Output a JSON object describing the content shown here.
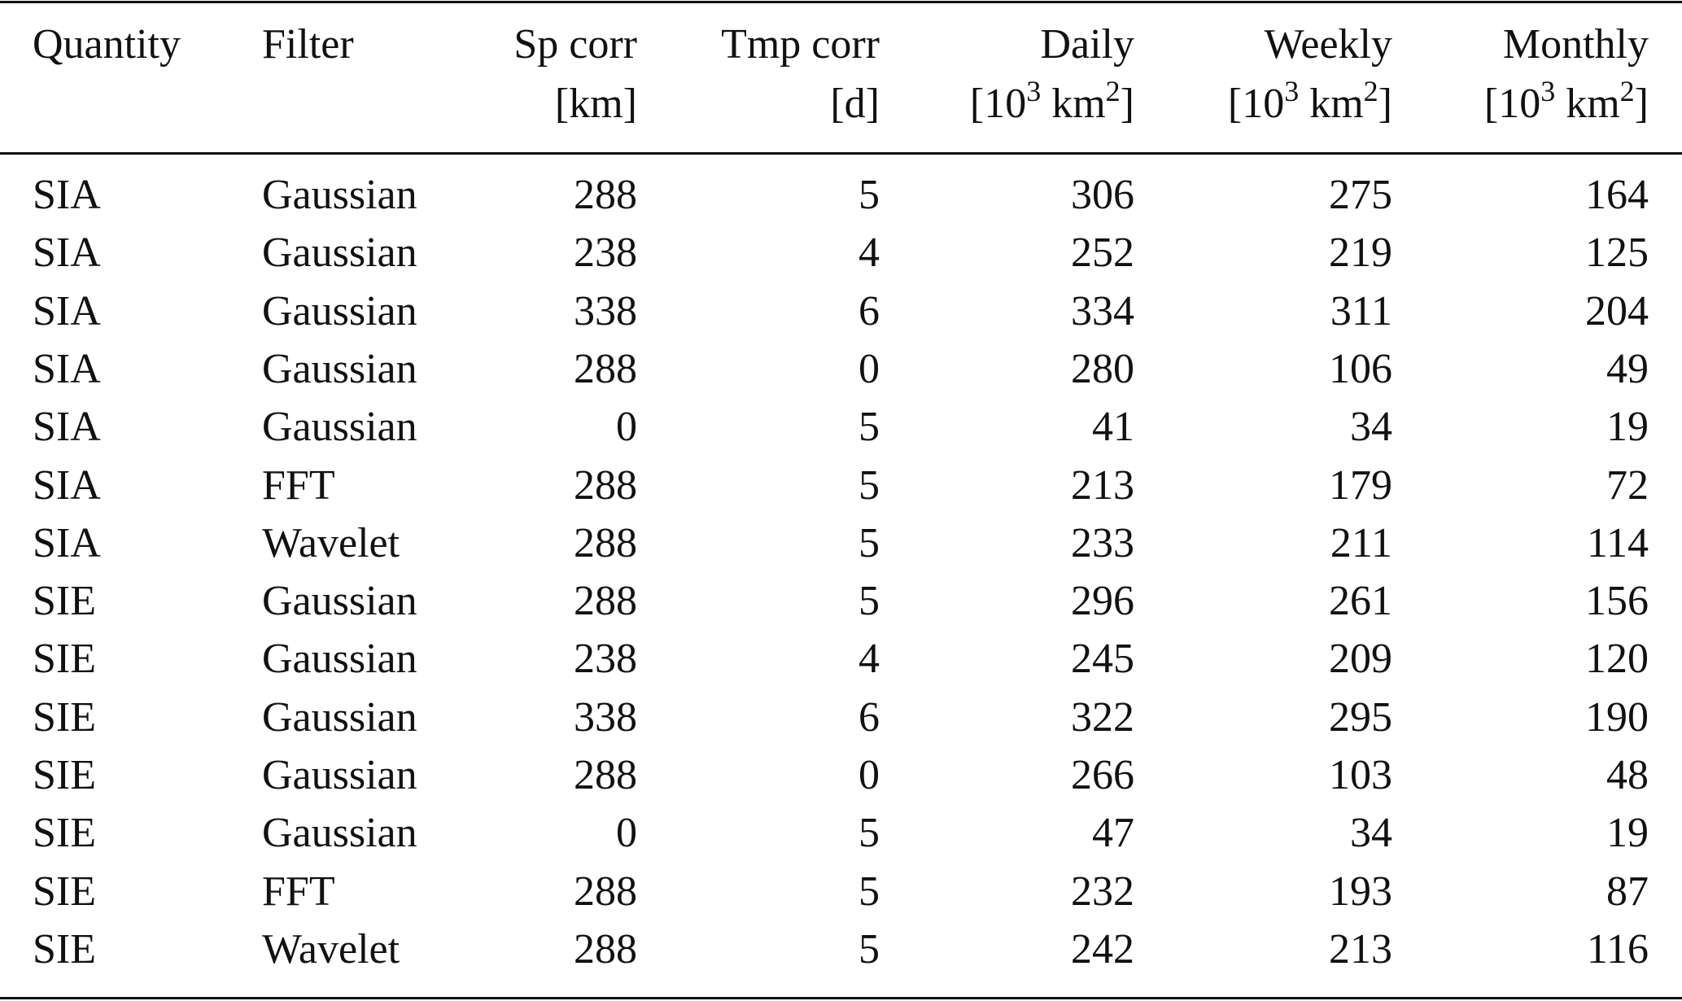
{
  "table": {
    "columns": [
      {
        "title": "Quantity"
      },
      {
        "title": "Filter"
      },
      {
        "title": "Sp corr",
        "unit": [
          "[km]"
        ]
      },
      {
        "title": "Tmp corr",
        "unit": [
          "[d]"
        ]
      },
      {
        "title": "Daily",
        "unit": [
          "[10",
          "3",
          " km",
          "2",
          "]"
        ]
      },
      {
        "title": "Weekly",
        "unit": [
          "[10",
          "3",
          " km",
          "2",
          "]"
        ]
      },
      {
        "title": "Monthly",
        "unit": [
          "[10",
          "3",
          " km",
          "2",
          "]"
        ]
      }
    ],
    "rows": [
      [
        "SIA",
        "Gaussian",
        288,
        5,
        306,
        275,
        164
      ],
      [
        "SIA",
        "Gaussian",
        238,
        4,
        252,
        219,
        125
      ],
      [
        "SIA",
        "Gaussian",
        338,
        6,
        334,
        311,
        204
      ],
      [
        "SIA",
        "Gaussian",
        288,
        0,
        280,
        106,
        49
      ],
      [
        "SIA",
        "Gaussian",
        0,
        5,
        41,
        34,
        19
      ],
      [
        "SIA",
        "FFT",
        288,
        5,
        213,
        179,
        72
      ],
      [
        "SIA",
        "Wavelet",
        288,
        5,
        233,
        211,
        114
      ],
      [
        "SIE",
        "Gaussian",
        288,
        5,
        296,
        261,
        156
      ],
      [
        "SIE",
        "Gaussian",
        238,
        4,
        245,
        209,
        120
      ],
      [
        "SIE",
        "Gaussian",
        338,
        6,
        322,
        295,
        190
      ],
      [
        "SIE",
        "Gaussian",
        288,
        0,
        266,
        103,
        48
      ],
      [
        "SIE",
        "Gaussian",
        0,
        5,
        47,
        34,
        19
      ],
      [
        "SIE",
        "FFT",
        288,
        5,
        232,
        193,
        87
      ],
      [
        "SIE",
        "Wavelet",
        288,
        5,
        242,
        213,
        116
      ]
    ]
  }
}
